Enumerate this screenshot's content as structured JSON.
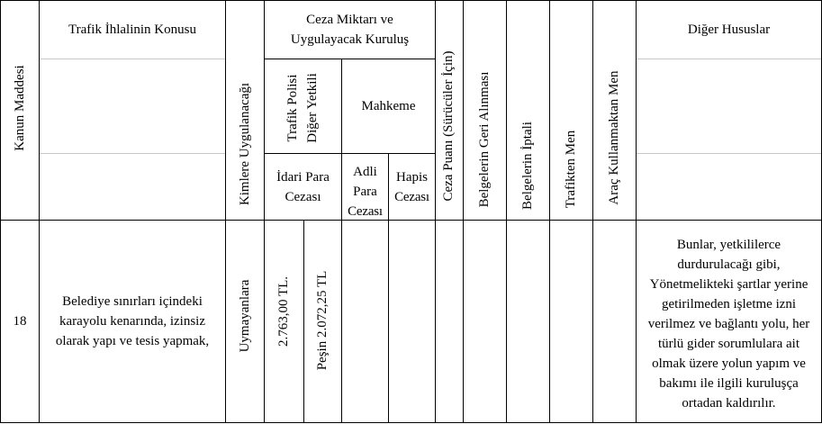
{
  "header": {
    "kanun_maddesi": "Kanun Maddesi",
    "ihlal_konusu": "Trafik İhlalinin Konusu",
    "kimlere": "Kimlere Uygulanacağı",
    "ceza_miktari_line1": "Ceza Miktarı ve",
    "ceza_miktari_line2": "Uygulayacak Kuruluş",
    "trafik_polisi_line1": "Trafik Polisi",
    "trafik_polisi_line2": "Diğer Yetkili",
    "mahkeme": "Mahkeme",
    "idari_line1": "İdari Para",
    "idari_line2": "Cezası",
    "adli_line1": "Adli",
    "adli_line2": "Para",
    "adli_line3": "Cezası",
    "hapis_line1": "Hapis",
    "hapis_line2": "Cezası",
    "ceza_puani": "Ceza Puanı (Sürücüler İçin)",
    "belge_geri": "Belgelerin Geri Alınması",
    "belge_iptal": "Belgelerin İptali",
    "trafikten_men": "Trafikten Men",
    "arac_men": "Araç Kullanmaktan Men",
    "diger": "Diğer Hususlar"
  },
  "row": {
    "madde": "18",
    "konu_line1": "Belediye sınırları içindeki",
    "konu_line2": "karayolu kenarında, izinsiz",
    "konu_line3": "olarak yapı ve tesis yapmak,",
    "kimlere": "Uymayanlara",
    "ceza": "2.763,00 TL.",
    "pesin": "Peşin 2.072,25 TL",
    "diger_line1": "Bunlar, yetkililerce",
    "diger_line2": "durdurulacağı gibi,",
    "diger_line3": "Yönetmelikteki şartlar yerine",
    "diger_line4": "getirilmeden işletme izni",
    "diger_line5": "verilmez ve bağlantı yolu, her",
    "diger_line6": "türlü gider sorumlulara ait",
    "diger_line7": "olmak üzere yolun yapım ve",
    "diger_line8": "bakımı ile ilgili kuruluşça",
    "diger_line9": "ortadan kaldırılır."
  }
}
